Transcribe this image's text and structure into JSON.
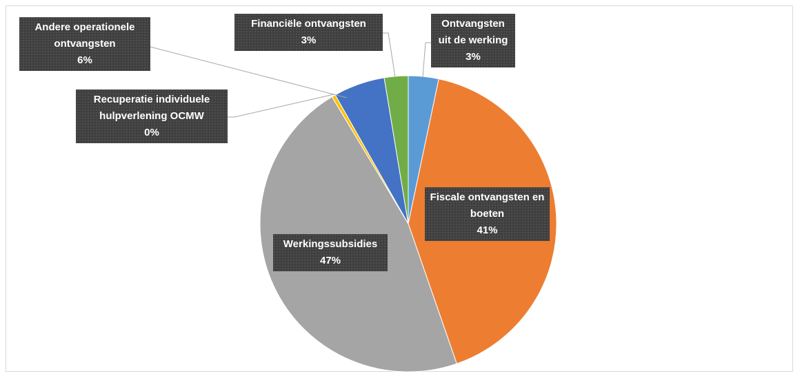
{
  "chart_data": {
    "type": "pie",
    "categories": [
      "Ontvangsten uit de werking",
      "Fiscale ontvangsten en boeten",
      "Werkingssubsidies",
      "Recuperatie individuele hulpverlening OCMW",
      "Andere operationele ontvangsten",
      "Financiële ontvangsten"
    ],
    "values": [
      3.3,
      41.4,
      46.7,
      0.4,
      5.6,
      2.6
    ],
    "value_labels": [
      "3%",
      "41%",
      "47%",
      "0%",
      "6%",
      "3%"
    ],
    "colors": [
      "#5b9bd5",
      "#ed7d31",
      "#a5a5a5",
      "#ffc000",
      "#4472c4",
      "#70ad47"
    ]
  }
}
